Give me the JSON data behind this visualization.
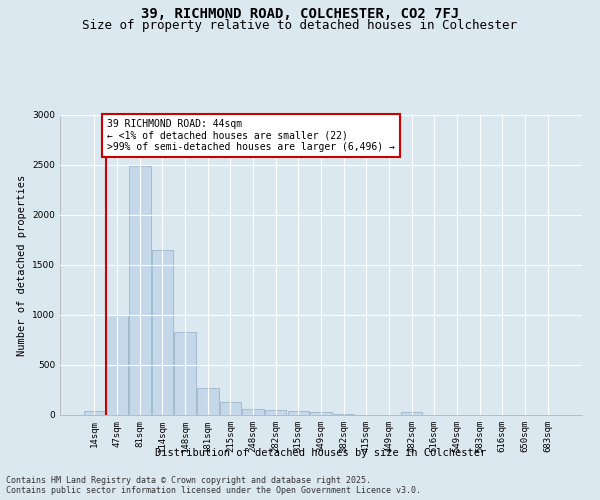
{
  "title1": "39, RICHMOND ROAD, COLCHESTER, CO2 7FJ",
  "title2": "Size of property relative to detached houses in Colchester",
  "xlabel": "Distribution of detached houses by size in Colchester",
  "ylabel": "Number of detached properties",
  "categories": [
    "14sqm",
    "47sqm",
    "81sqm",
    "114sqm",
    "148sqm",
    "181sqm",
    "215sqm",
    "248sqm",
    "282sqm",
    "315sqm",
    "349sqm",
    "382sqm",
    "415sqm",
    "449sqm",
    "482sqm",
    "516sqm",
    "549sqm",
    "583sqm",
    "616sqm",
    "650sqm",
    "683sqm"
  ],
  "values": [
    40,
    1000,
    2490,
    1650,
    830,
    270,
    130,
    60,
    55,
    40,
    30,
    15,
    0,
    0,
    30,
    0,
    0,
    0,
    0,
    0,
    0
  ],
  "bar_color": "#c5d8ea",
  "bar_edge_color": "#90aec6",
  "vline_color": "#cc0000",
  "vline_x": 0.5,
  "ylim": [
    0,
    3000
  ],
  "yticks": [
    0,
    500,
    1000,
    1500,
    2000,
    2500,
    3000
  ],
  "annotation_text": "39 RICHMOND ROAD: 44sqm\n← <1% of detached houses are smaller (22)\n>99% of semi-detached houses are larger (6,496) →",
  "annotation_box_color": "#ffffff",
  "annotation_box_edge_color": "#cc0000",
  "footer_line1": "Contains HM Land Registry data © Crown copyright and database right 2025.",
  "footer_line2": "Contains public sector information licensed under the Open Government Licence v3.0.",
  "background_color": "#dce8f0",
  "plot_background_color": "#dce8f0",
  "grid_color": "#ffffff",
  "title_fontsize": 10,
  "subtitle_fontsize": 9,
  "axis_label_fontsize": 7.5,
  "tick_fontsize": 6.5,
  "annotation_fontsize": 7,
  "footer_fontsize": 6
}
